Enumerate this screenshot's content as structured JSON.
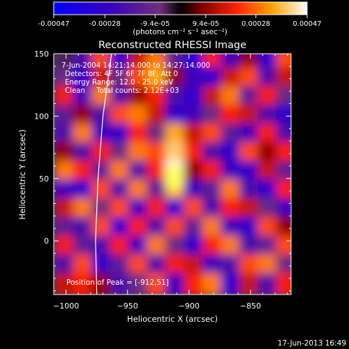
{
  "chart_data": {
    "type": "heatmap",
    "title": "Reconstructed RHESSI Image",
    "xlabel": "Heliocentric X (arcsec)",
    "ylabel": "Heliocentric Y (arcsec)",
    "xlim": [
      -1010,
      -817
    ],
    "ylim": [
      -43,
      150
    ],
    "x_ticks": [
      -1000,
      -950,
      -900,
      -850
    ],
    "y_ticks": [
      0,
      50,
      100,
      150
    ],
    "colorbar": {
      "min": -0.00047,
      "max": 0.00047,
      "tick_values": [
        -0.00047,
        -0.00028,
        -9.4e-05,
        9.4e-05,
        0.00028,
        0.00047
      ],
      "tick_labels": [
        "-0.00047",
        "-0.00028",
        "-9.4e-05",
        "9.4e-05",
        "0.00028",
        "0.00047"
      ],
      "unit_label": "(photons cm⁻² s⁻¹ asec⁻²)"
    },
    "annotations": [
      "7-Jun-2004 14:21:14.000 to 14:27:14.000",
      "Detectors: 4F 5F 6F 7F 8F, Att 0",
      "Energy Range: 12.0 - 25.0 keV",
      "Clean     Total counts: 2.12E+03"
    ],
    "peak_label": "Position of Peak = [-912,51]",
    "peak": [
      -912,
      51
    ],
    "footer_date": "17-Jun-2013 16:49",
    "limb_curve": [
      [
        -975,
        -43
      ],
      [
        -976,
        0
      ],
      [
        -974,
        50
      ],
      [
        -970,
        100
      ],
      [
        -963,
        150
      ]
    ],
    "image_rows_note_units": "intensity in colorbar units (x1e-4)",
    "image_x": [
      -1000,
      -985,
      -970,
      -955,
      -940,
      -925,
      -910,
      -895,
      -880,
      -865,
      -850,
      -835,
      -820
    ],
    "image_y": [
      145,
      130,
      115,
      100,
      85,
      70,
      55,
      40,
      25,
      10,
      -5,
      -20,
      -35
    ],
    "image_values": [
      [
        -0.5,
        -2.0,
        2.5,
        -3.0,
        1.5,
        3.0,
        -1.5,
        -3.5,
        2.0,
        -2.5,
        1.0,
        -3.0,
        2.5
      ],
      [
        -1.0,
        -3.0,
        1.5,
        -1.0,
        2.5,
        3.5,
        1.0,
        -2.5,
        -3.0,
        1.5,
        2.5,
        -2.0,
        1.5
      ],
      [
        2.0,
        -2.5,
        3.0,
        -2.0,
        1.0,
        2.0,
        -2.0,
        -3.0,
        1.5,
        3.0,
        -1.5,
        2.0,
        -1.0
      ],
      [
        -1.5,
        1.0,
        -2.0,
        2.5,
        3.0,
        1.5,
        -3.0,
        -2.5,
        -1.0,
        2.0,
        1.5,
        -2.0,
        -3.0
      ],
      [
        -2.0,
        3.0,
        -2.5,
        -3.0,
        2.0,
        -1.0,
        3.5,
        1.5,
        2.5,
        -1.5,
        -2.5,
        2.0,
        -2.0
      ],
      [
        1.0,
        -2.0,
        2.0,
        -1.0,
        3.0,
        2.5,
        4.0,
        2.0,
        -2.0,
        -3.0,
        2.5,
        1.0,
        2.0
      ],
      [
        3.0,
        2.0,
        -1.5,
        3.0,
        -2.0,
        2.0,
        4.7,
        1.0,
        2.0,
        -2.5,
        -3.0,
        1.5,
        -1.5
      ],
      [
        -2.5,
        -3.0,
        2.5,
        -2.0,
        3.0,
        -1.5,
        3.5,
        -2.5,
        -1.5,
        3.0,
        -2.0,
        -3.0,
        2.0
      ],
      [
        1.5,
        3.0,
        -1.0,
        2.5,
        -2.5,
        2.0,
        -3.0,
        2.5,
        -2.0,
        2.0,
        1.5,
        -1.0,
        -2.5
      ],
      [
        -1.5,
        -2.0,
        2.5,
        -3.0,
        2.0,
        -2.0,
        2.5,
        -1.5,
        3.0,
        -2.5,
        -3.0,
        2.5,
        1.0
      ],
      [
        2.0,
        -1.5,
        -2.0,
        2.0,
        -2.5,
        3.0,
        -1.0,
        -3.0,
        2.0,
        3.0,
        -2.0,
        -1.5,
        2.5
      ],
      [
        -2.0,
        2.5,
        -3.0,
        -1.5,
        2.5,
        -2.0,
        2.0,
        1.5,
        -2.5,
        -2.0,
        2.5,
        3.0,
        -1.0
      ],
      [
        1.5,
        2.0,
        1.0,
        -2.0,
        -1.0,
        2.5,
        -2.5,
        2.0,
        3.0,
        -3.0,
        1.5,
        -2.0,
        2.0
      ]
    ]
  }
}
